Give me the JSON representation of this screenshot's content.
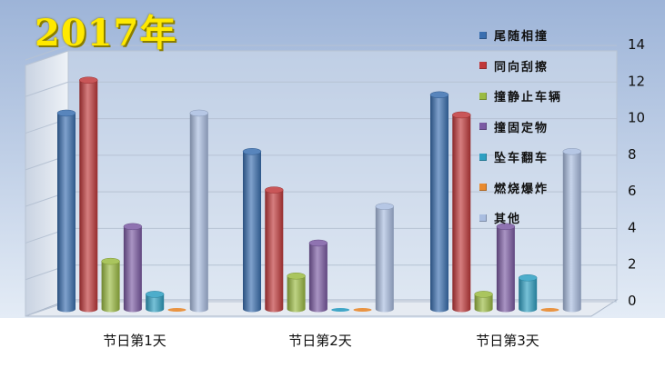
{
  "title": "2017年",
  "colors": {
    "background_top": "#9db4d8",
    "background_bottom": "#dde7f4",
    "wall": "#dfe6ef",
    "floor": "#e6ebf2"
  },
  "chart_data": {
    "type": "bar",
    "categories": [
      "节日第1天",
      "节日第2天",
      "节日第3天"
    ],
    "series": [
      {
        "name": "尾随相撞",
        "color": "#3a6fb0",
        "values": [
          10.7,
          8.6,
          11.7
        ]
      },
      {
        "name": "同向刮擦",
        "color": "#c0383a",
        "values": [
          12.5,
          6.5,
          10.6
        ]
      },
      {
        "name": "撞静止车辆",
        "color": "#9bbb42",
        "values": [
          2.6,
          1.8,
          0.8
        ]
      },
      {
        "name": "撞固定物",
        "color": "#7b5aa3",
        "values": [
          4.5,
          3.6,
          4.5
        ]
      },
      {
        "name": "坠车翻车",
        "color": "#2e9fc2",
        "values": [
          0.8,
          0,
          1.7
        ]
      },
      {
        "name": "燃烧爆炸",
        "color": "#e98a2e",
        "values": [
          0,
          0,
          0
        ]
      },
      {
        "name": "其他",
        "color": "#a9bde0",
        "values": [
          10.7,
          5.6,
          8.6
        ]
      }
    ],
    "yticks": [
      "0",
      "2",
      "4",
      "6",
      "8",
      "10",
      "12",
      "14"
    ],
    "ylim": [
      0,
      14
    ],
    "grid": true,
    "legend_position": "right"
  }
}
